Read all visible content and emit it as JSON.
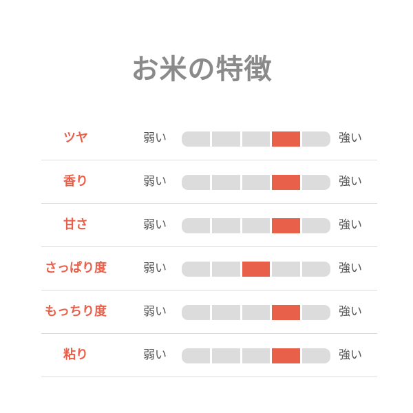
{
  "title": "お米の特徴",
  "weak_label": "弱い",
  "strong_label": "強い",
  "accent_color": "#e8604a",
  "scale_steps": 5,
  "characteristics": [
    {
      "label": "ツヤ",
      "level": 4
    },
    {
      "label": "香り",
      "level": 4
    },
    {
      "label": "甘さ",
      "level": 4
    },
    {
      "label": "さっぱり度",
      "level": 3
    },
    {
      "label": "もっちり度",
      "level": 4
    },
    {
      "label": "粘り",
      "level": 4
    }
  ]
}
